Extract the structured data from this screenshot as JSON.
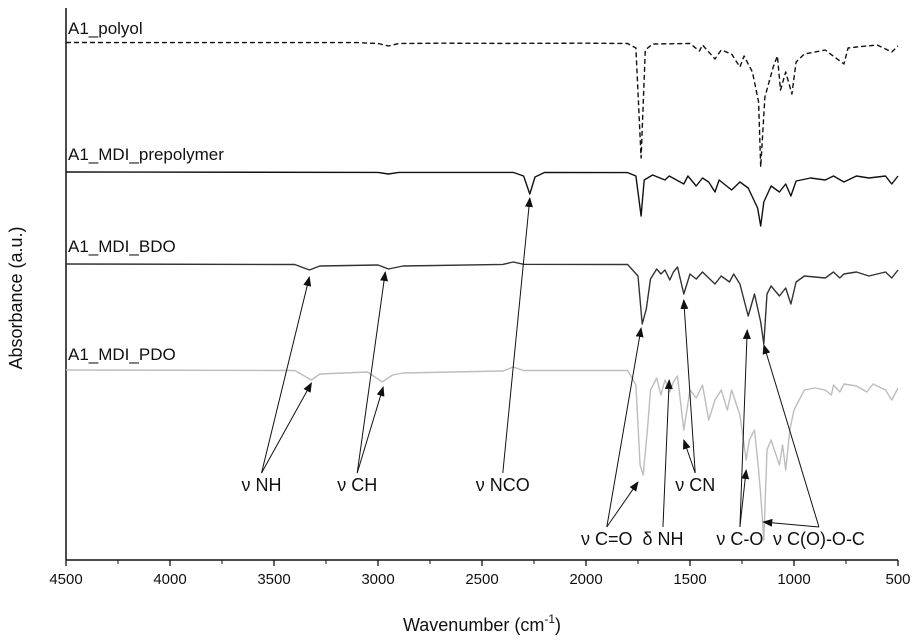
{
  "chart_data": {
    "type": "line",
    "xlabel": "Wavenumber (cm",
    "xlabel_sup": "-1",
    "xlabel_end": ")",
    "ylabel": "Absorbance (a.u.)",
    "xlim": [
      4500,
      500
    ],
    "x_ticks": [
      4500,
      4000,
      3500,
      3000,
      2500,
      2000,
      1500,
      1000,
      500
    ],
    "x_tick_labels": [
      "4500",
      "4000",
      "3500",
      "3000",
      "2500",
      "2000",
      "1500",
      "1000",
      "500"
    ],
    "grid": false,
    "series": [
      {
        "name": "A1_polyol",
        "color": "#111111",
        "dash": "5,3",
        "points": [
          [
            4500,
            0.5
          ],
          [
            3100,
            0.6
          ],
          [
            3000,
            1.5
          ],
          [
            2950,
            4
          ],
          [
            2900,
            1.5
          ],
          [
            2700,
            1.2
          ],
          [
            2400,
            1.4
          ],
          [
            2000,
            1.2
          ],
          [
            1800,
            1.5
          ],
          [
            1760,
            6
          ],
          [
            1735,
            116
          ],
          [
            1715,
            8
          ],
          [
            1680,
            2
          ],
          [
            1500,
            1.5
          ],
          [
            1455,
            9
          ],
          [
            1440,
            3
          ],
          [
            1380,
            17
          ],
          [
            1350,
            8
          ],
          [
            1300,
            12
          ],
          [
            1260,
            25
          ],
          [
            1240,
            14
          ],
          [
            1200,
            30
          ],
          [
            1170,
            60
          ],
          [
            1160,
            125
          ],
          [
            1140,
            55
          ],
          [
            1100,
            25
          ],
          [
            1080,
            14
          ],
          [
            1065,
            48
          ],
          [
            1040,
            30
          ],
          [
            1010,
            52
          ],
          [
            990,
            20
          ],
          [
            950,
            12
          ],
          [
            850,
            8
          ],
          [
            760,
            22
          ],
          [
            740,
            6
          ],
          [
            700,
            5
          ],
          [
            600,
            3
          ],
          [
            530,
            10
          ],
          [
            500,
            4
          ]
        ]
      },
      {
        "name": "A1_MDI_prepolymer",
        "color": "#111111",
        "dash": "",
        "points": [
          [
            4500,
            0
          ],
          [
            3000,
            0.4
          ],
          [
            2950,
            2
          ],
          [
            2900,
            0.4
          ],
          [
            2350,
            0.4
          ],
          [
            2300,
            4
          ],
          [
            2270,
            22
          ],
          [
            2245,
            5
          ],
          [
            2200,
            0.5
          ],
          [
            1800,
            0.6
          ],
          [
            1760,
            4
          ],
          [
            1735,
            44
          ],
          [
            1720,
            8
          ],
          [
            1680,
            3
          ],
          [
            1620,
            8
          ],
          [
            1600,
            4
          ],
          [
            1530,
            12
          ],
          [
            1510,
            4
          ],
          [
            1470,
            14
          ],
          [
            1440,
            6
          ],
          [
            1410,
            10
          ],
          [
            1380,
            20
          ],
          [
            1360,
            8
          ],
          [
            1300,
            18
          ],
          [
            1260,
            10
          ],
          [
            1220,
            16
          ],
          [
            1175,
            36
          ],
          [
            1160,
            54
          ],
          [
            1145,
            30
          ],
          [
            1110,
            14
          ],
          [
            1070,
            20
          ],
          [
            1040,
            12
          ],
          [
            1015,
            24
          ],
          [
            990,
            9
          ],
          [
            920,
            6
          ],
          [
            850,
            8
          ],
          [
            810,
            4
          ],
          [
            760,
            10
          ],
          [
            700,
            4
          ],
          [
            640,
            6
          ],
          [
            560,
            4
          ],
          [
            530,
            12
          ],
          [
            500,
            4
          ]
        ]
      },
      {
        "name": "A1_MDI_BDO",
        "color": "#333333",
        "dash": "",
        "points": [
          [
            4500,
            0
          ],
          [
            3400,
            0.5
          ],
          [
            3330,
            6
          ],
          [
            3280,
            2
          ],
          [
            3000,
            1
          ],
          [
            2950,
            5
          ],
          [
            2880,
            2
          ],
          [
            2400,
            0.4
          ],
          [
            2350,
            -2
          ],
          [
            2300,
            0.3
          ],
          [
            1800,
            0.5
          ],
          [
            1750,
            12
          ],
          [
            1730,
            60
          ],
          [
            1710,
            45
          ],
          [
            1690,
            15
          ],
          [
            1660,
            5
          ],
          [
            1640,
            10
          ],
          [
            1620,
            6
          ],
          [
            1597,
            16
          ],
          [
            1580,
            8
          ],
          [
            1560,
            3
          ],
          [
            1530,
            30
          ],
          [
            1500,
            10
          ],
          [
            1470,
            15
          ],
          [
            1440,
            8
          ],
          [
            1410,
            14
          ],
          [
            1380,
            20
          ],
          [
            1350,
            12
          ],
          [
            1310,
            18
          ],
          [
            1290,
            10
          ],
          [
            1260,
            20
          ],
          [
            1220,
            52
          ],
          [
            1190,
            30
          ],
          [
            1160,
            58
          ],
          [
            1145,
            80
          ],
          [
            1130,
            30
          ],
          [
            1110,
            22
          ],
          [
            1070,
            32
          ],
          [
            1040,
            24
          ],
          [
            1015,
            40
          ],
          [
            990,
            18
          ],
          [
            950,
            12
          ],
          [
            850,
            14
          ],
          [
            810,
            8
          ],
          [
            780,
            14
          ],
          [
            760,
            10
          ],
          [
            700,
            8
          ],
          [
            640,
            12
          ],
          [
            560,
            8
          ],
          [
            530,
            14
          ],
          [
            500,
            6
          ]
        ]
      },
      {
        "name": "A1_MDI_PDO",
        "color": "#bdbdbd",
        "dash": "",
        "points": [
          [
            4500,
            0
          ],
          [
            3400,
            0.5
          ],
          [
            3320,
            10
          ],
          [
            3280,
            4
          ],
          [
            3050,
            2
          ],
          [
            2980,
            12
          ],
          [
            2930,
            5
          ],
          [
            2880,
            3
          ],
          [
            2400,
            1
          ],
          [
            2350,
            -3
          ],
          [
            2300,
            0.5
          ],
          [
            1800,
            0.5
          ],
          [
            1760,
            15
          ],
          [
            1740,
            95
          ],
          [
            1725,
            105
          ],
          [
            1705,
            60
          ],
          [
            1690,
            20
          ],
          [
            1660,
            8
          ],
          [
            1640,
            25
          ],
          [
            1620,
            10
          ],
          [
            1597,
            22
          ],
          [
            1580,
            12
          ],
          [
            1560,
            6
          ],
          [
            1530,
            60
          ],
          [
            1500,
            20
          ],
          [
            1470,
            28
          ],
          [
            1440,
            15
          ],
          [
            1410,
            50
          ],
          [
            1380,
            30
          ],
          [
            1350,
            20
          ],
          [
            1320,
            40
          ],
          [
            1300,
            20
          ],
          [
            1260,
            45
          ],
          [
            1230,
            90
          ],
          [
            1215,
            70
          ],
          [
            1190,
            60
          ],
          [
            1170,
            100
          ],
          [
            1160,
            125
          ],
          [
            1145,
            170
          ],
          [
            1130,
            80
          ],
          [
            1110,
            70
          ],
          [
            1070,
            95
          ],
          [
            1055,
            75
          ],
          [
            1040,
            100
          ],
          [
            1020,
            60
          ],
          [
            1000,
            40
          ],
          [
            950,
            20
          ],
          [
            900,
            18
          ],
          [
            850,
            20
          ],
          [
            820,
            25
          ],
          [
            810,
            15
          ],
          [
            780,
            22
          ],
          [
            760,
            14
          ],
          [
            700,
            16
          ],
          [
            650,
            22
          ],
          [
            620,
            14
          ],
          [
            560,
            20
          ],
          [
            530,
            30
          ],
          [
            500,
            18
          ]
        ]
      }
    ],
    "annotations": [
      {
        "label": "ν NH",
        "text_x": 3560,
        "text_y": 491,
        "targets": [
          [
            3330,
            277
          ],
          [
            3320,
            383
          ]
        ]
      },
      {
        "label": "ν CH",
        "text_x": 3100,
        "text_y": 491,
        "targets": [
          [
            2965,
            272
          ],
          [
            2975,
            387
          ]
        ]
      },
      {
        "label": "ν NCO",
        "text_x": 2400,
        "text_y": 491,
        "targets": [
          [
            2270,
            198
          ]
        ]
      },
      {
        "label": "ν C=O",
        "text_x": 1900,
        "text_y": 545,
        "targets": [
          [
            1735,
            328
          ],
          [
            1750,
            482
          ]
        ]
      },
      {
        "label": "δ NH",
        "text_x": 1630,
        "text_y": 545,
        "targets": [
          [
            1600,
            380
          ]
        ]
      },
      {
        "label": "ν CN",
        "text_x": 1475,
        "text_y": 491,
        "targets": [
          [
            1530,
            300
          ],
          [
            1530,
            440
          ]
        ]
      },
      {
        "label": "ν C-O",
        "text_x": 1260,
        "text_y": 545,
        "targets": [
          [
            1225,
            330
          ],
          [
            1230,
            470
          ]
        ]
      },
      {
        "label": "ν C(O)-O-C",
        "text_x": 880,
        "text_y": 545,
        "targets": [
          [
            1145,
            345
          ],
          [
            1148,
            522
          ]
        ]
      }
    ]
  }
}
